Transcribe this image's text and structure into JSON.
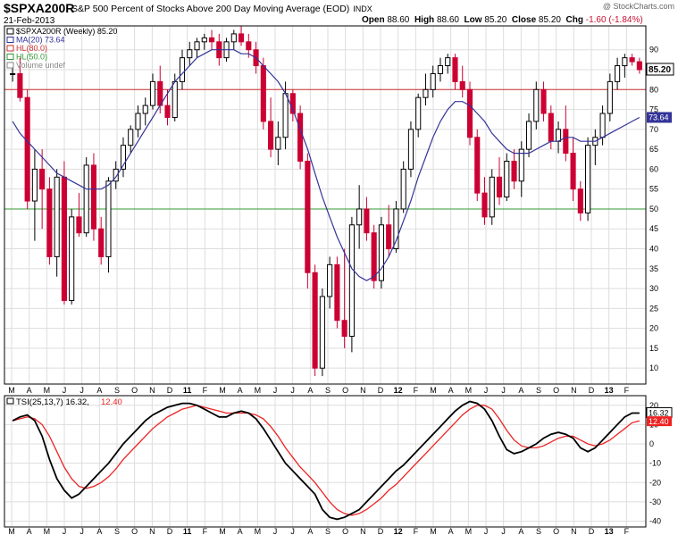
{
  "header": {
    "symbol": "$SPXA200R",
    "description": "S&P 500 Percent of Stocks Above 200 Day Moving Average (EOD)",
    "exchange": "INDX",
    "watermark": "@ StockCharts.com",
    "date": "21-Feb-2013",
    "open_label": "Open",
    "open": "88.60",
    "high_label": "High",
    "high": "88.60",
    "low_label": "Low",
    "low": "85.20",
    "close_label": "Close",
    "close": "85.20",
    "chg_label": "Chg",
    "chg": "-1.60 (-1.84%)"
  },
  "colors": {
    "up": "#000000",
    "down": "#cc0033",
    "ma": "#333399",
    "hl80": "#cc3333",
    "hl50": "#339933",
    "tsi": "#000000",
    "signal": "#ee2222",
    "grid": "#dddddd"
  },
  "chart_data": [
    {
      "type": "candlestick",
      "title": "$SPXA200R (Weekly) 85.20",
      "legend": [
        {
          "label": "$SPXA200R (Weekly) 85.20",
          "color": "#000000"
        },
        {
          "label": "MA(20) 73.64",
          "color": "#333399"
        },
        {
          "label": "HL(80.0)",
          "color": "#cc3333"
        },
        {
          "label": "HL(50.0)",
          "color": "#339933"
        },
        {
          "label": "Volume undef",
          "color": "#888888"
        }
      ],
      "ylim": [
        6,
        96
      ],
      "yticks": [
        10,
        15,
        20,
        25,
        30,
        35,
        40,
        45,
        50,
        55,
        60,
        65,
        70,
        75,
        80,
        85,
        90
      ],
      "grid": true,
      "horizontal_lines": [
        80,
        50
      ],
      "last_value_label": "85.20",
      "ma_value_label": "73.64",
      "x_labels": [
        "M",
        "A",
        "M",
        "J",
        "J",
        "A",
        "S",
        "O",
        "N",
        "D",
        "11",
        "F",
        "M",
        "A",
        "M",
        "J",
        "J",
        "A",
        "S",
        "O",
        "N",
        "D",
        "12",
        "F",
        "M",
        "A",
        "M",
        "J",
        "J",
        "A",
        "S",
        "O",
        "N",
        "D",
        "13",
        "F"
      ],
      "candles": [
        [
          84,
          86,
          82,
          84
        ],
        [
          84,
          88,
          77,
          78
        ],
        [
          78,
          80,
          50,
          52
        ],
        [
          52,
          65,
          42,
          60
        ],
        [
          60,
          65,
          45,
          55
        ],
        [
          55,
          58,
          36,
          38
        ],
        [
          38,
          60,
          33,
          58
        ],
        [
          58,
          62,
          26,
          27
        ],
        [
          27,
          50,
          26,
          48
        ],
        [
          48,
          54,
          43,
          44
        ],
        [
          44,
          63,
          43,
          61
        ],
        [
          61,
          64,
          42,
          45
        ],
        [
          45,
          48,
          36,
          38
        ],
        [
          38,
          58,
          34,
          57
        ],
        [
          57,
          62,
          55,
          60
        ],
        [
          60,
          68,
          58,
          66
        ],
        [
          66,
          71,
          64,
          70
        ],
        [
          70,
          76,
          68,
          74
        ],
        [
          74,
          78,
          71,
          76
        ],
        [
          76,
          84,
          75,
          82
        ],
        [
          82,
          86,
          74,
          76
        ],
        [
          76,
          80,
          71,
          73
        ],
        [
          73,
          84,
          72,
          82
        ],
        [
          82,
          90,
          80,
          88
        ],
        [
          88,
          92,
          86,
          90
        ],
        [
          90,
          93,
          88,
          92
        ],
        [
          92,
          94,
          90,
          93
        ],
        [
          93,
          95,
          90,
          92
        ],
        [
          92,
          94,
          86,
          88
        ],
        [
          88,
          93,
          87,
          92
        ],
        [
          92,
          95,
          90,
          94
        ],
        [
          94,
          96,
          91,
          92
        ],
        [
          92,
          94,
          88,
          90
        ],
        [
          90,
          92,
          84,
          86
        ],
        [
          86,
          88,
          70,
          72
        ],
        [
          72,
          78,
          63,
          65
        ],
        [
          65,
          72,
          61,
          68
        ],
        [
          68,
          82,
          65,
          79
        ],
        [
          79,
          80,
          72,
          74
        ],
        [
          74,
          76,
          60,
          62
        ],
        [
          62,
          64,
          30,
          34
        ],
        [
          34,
          36,
          8,
          10
        ],
        [
          10,
          30,
          8,
          28
        ],
        [
          28,
          38,
          25,
          36
        ],
        [
          36,
          38,
          20,
          22
        ],
        [
          22,
          40,
          15,
          18
        ],
        [
          18,
          48,
          14,
          46
        ],
        [
          46,
          56,
          40,
          50
        ],
        [
          50,
          53,
          42,
          44
        ],
        [
          44,
          46,
          30,
          32
        ],
        [
          32,
          48,
          30,
          46
        ],
        [
          46,
          51,
          38,
          40
        ],
        [
          40,
          52,
          39,
          50
        ],
        [
          50,
          62,
          49,
          60
        ],
        [
          60,
          72,
          58,
          70
        ],
        [
          70,
          79,
          68,
          78
        ],
        [
          78,
          84,
          76,
          80
        ],
        [
          80,
          86,
          78,
          84
        ],
        [
          84,
          88,
          82,
          86
        ],
        [
          86,
          89,
          84,
          88
        ],
        [
          88,
          89,
          80,
          82
        ],
        [
          82,
          86,
          78,
          80
        ],
        [
          80,
          82,
          66,
          68
        ],
        [
          68,
          70,
          52,
          54
        ],
        [
          54,
          58,
          46,
          48
        ],
        [
          48,
          60,
          46,
          58
        ],
        [
          58,
          63,
          51,
          53
        ],
        [
          53,
          64,
          52,
          62
        ],
        [
          62,
          65,
          55,
          57
        ],
        [
          57,
          67,
          53,
          65
        ],
        [
          65,
          74,
          63,
          72
        ],
        [
          72,
          82,
          70,
          80
        ],
        [
          80,
          82,
          72,
          74
        ],
        [
          74,
          76,
          65,
          67
        ],
        [
          67,
          72,
          64,
          70
        ],
        [
          70,
          76,
          62,
          64
        ],
        [
          64,
          68,
          52,
          55
        ],
        [
          55,
          57,
          47,
          49
        ],
        [
          49,
          68,
          47,
          66
        ],
        [
          66,
          70,
          61,
          68
        ],
        [
          68,
          76,
          66,
          74
        ],
        [
          74,
          84,
          72,
          82
        ],
        [
          82,
          88,
          80,
          86
        ],
        [
          86,
          89,
          83,
          88
        ],
        [
          88,
          89,
          86,
          87
        ],
        [
          87,
          88,
          84,
          85
        ]
      ],
      "ma20": [
        72,
        69,
        67,
        65,
        63,
        61,
        59,
        58,
        57,
        56,
        55,
        55,
        55,
        56,
        58,
        61,
        64,
        67,
        70,
        73,
        76,
        79,
        82,
        84,
        86,
        88,
        89,
        90,
        90,
        90,
        90,
        89,
        89,
        88,
        86,
        84,
        82,
        79,
        75,
        70,
        65,
        59,
        53,
        48,
        43,
        39,
        35,
        33,
        32,
        33,
        35,
        38,
        42,
        47,
        52,
        58,
        63,
        68,
        72,
        75,
        77,
        77,
        76,
        74,
        72,
        69,
        67,
        65,
        64,
        64,
        64,
        65,
        66,
        67,
        67,
        68,
        68,
        67,
        67,
        67,
        68,
        69,
        70,
        71,
        72,
        73
      ]
    },
    {
      "type": "line",
      "title": "TSI(25,13,7) 16.32, 12.40",
      "legend": [
        {
          "label": "TSI(25,13,7) 16.32,",
          "color": "#000000"
        },
        {
          "label": "12.40",
          "color": "#ee2222"
        }
      ],
      "ylim": [
        -43,
        25
      ],
      "yticks": [
        -40,
        -30,
        -20,
        -10,
        0,
        10,
        20
      ],
      "last_value_labels": [
        "16.32",
        "12.40"
      ],
      "series": [
        {
          "name": "TSI(25,13,7)",
          "values": [
            12,
            14,
            15,
            12,
            4,
            -8,
            -18,
            -24,
            -28,
            -26,
            -22,
            -18,
            -14,
            -10,
            -5,
            0,
            4,
            8,
            12,
            15,
            17,
            19,
            20,
            21,
            21,
            20,
            18,
            16,
            14,
            14,
            16,
            17,
            16,
            13,
            8,
            2,
            -4,
            -10,
            -14,
            -18,
            -22,
            -26,
            -34,
            -38,
            -39,
            -38,
            -36,
            -34,
            -30,
            -26,
            -22,
            -18,
            -14,
            -11,
            -7,
            -3,
            1,
            5,
            9,
            13,
            17,
            20,
            22,
            21,
            18,
            12,
            4,
            -3,
            -5,
            -4,
            -2,
            0,
            3,
            5,
            6,
            5,
            3,
            -2,
            -4,
            -2,
            2,
            6,
            10,
            14,
            16,
            16
          ]
        },
        {
          "name": "Signal",
          "values": [
            12,
            13,
            14,
            13,
            10,
            4,
            -4,
            -12,
            -18,
            -22,
            -23,
            -22,
            -20,
            -17,
            -13,
            -8,
            -4,
            0,
            4,
            8,
            11,
            14,
            16,
            18,
            19,
            20,
            19,
            18,
            17,
            16,
            16,
            16,
            16,
            15,
            13,
            9,
            4,
            -2,
            -7,
            -12,
            -16,
            -20,
            -25,
            -30,
            -34,
            -36,
            -37,
            -36,
            -34,
            -31,
            -28,
            -24,
            -21,
            -17,
            -13,
            -9,
            -5,
            -1,
            3,
            7,
            11,
            15,
            18,
            20,
            20,
            18,
            13,
            7,
            2,
            -1,
            -2,
            -2,
            -1,
            1,
            3,
            4,
            4,
            2,
            0,
            -1,
            0,
            2,
            5,
            8,
            11,
            12
          ]
        }
      ]
    }
  ]
}
